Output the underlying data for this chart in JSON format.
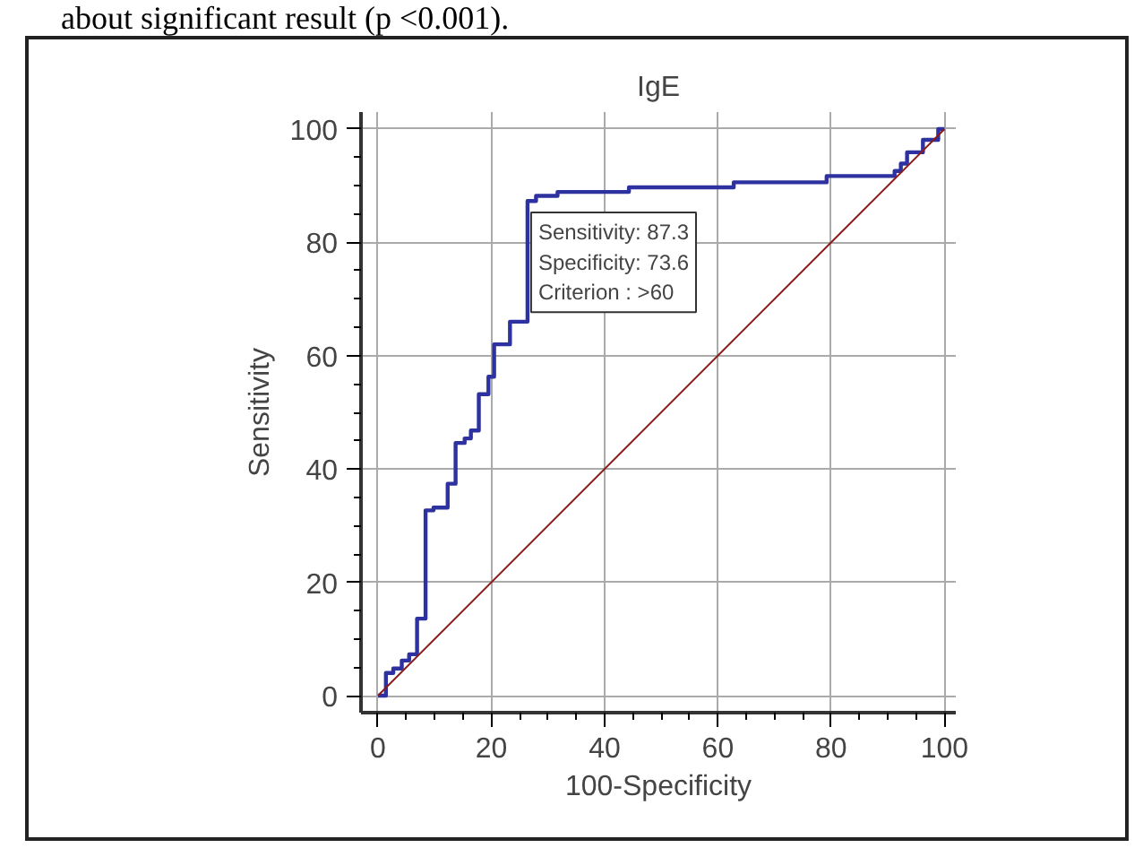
{
  "chart_data": {
    "type": "step",
    "title": "IgE",
    "xlabel": "100-Specificity",
    "ylabel": "Sensitivity",
    "x": [
      0,
      1.4,
      1.4,
      2.7,
      2.7,
      4.2,
      4.2,
      5.5,
      5.5,
      6.9,
      6.9,
      8.4,
      8.4,
      9.8,
      12.3,
      12.3,
      13.7,
      13.7,
      15.3,
      16.4,
      17.8,
      17.8,
      19.5,
      19.5,
      20.5,
      21.9,
      23.3,
      25.1,
      26.4,
      26.4,
      27.9,
      31.7,
      44.3,
      60.1,
      62.8,
      75.9,
      79.2,
      89,
      91.2,
      92.3,
      93.4,
      96.2,
      98.9,
      100
    ],
    "series": [
      {
        "color": "#2e31a0",
        "values": [
          0,
          1.4,
          4,
          4,
          4.8,
          4.8,
          6.2,
          6.2,
          7.3,
          7.8,
          13.6,
          13.6,
          32.7,
          33.2,
          33.8,
          37.4,
          39.6,
          44.6,
          45.4,
          46.8,
          50.7,
          53.2,
          53.2,
          56.3,
          62,
          62,
          66,
          66,
          67.6,
          87.3,
          88.2,
          88.9,
          89.7,
          89.7,
          90.6,
          90.6,
          91.7,
          91.7,
          92.6,
          93.9,
          95.9,
          98.1,
          100,
          100
        ]
      },
      {
        "type": "line",
        "color": "#8b1a1a",
        "x": [
          0,
          100
        ],
        "values": [
          0,
          100
        ]
      }
    ],
    "xlim": [
      -3,
      102
    ],
    "ylim": [
      -3,
      103
    ],
    "xticks": [
      0,
      20,
      40,
      60,
      80,
      100
    ],
    "yticks": [
      0,
      20,
      40,
      60,
      80,
      100
    ],
    "grid": true,
    "annotations": [
      {
        "text": "Sensitivity: 87.3\nSpecificity: 73.6\nCriterion : >60",
        "x": 26.4,
        "y": 87.3
      },
      "about significant result (p <0.001)."
    ]
  }
}
